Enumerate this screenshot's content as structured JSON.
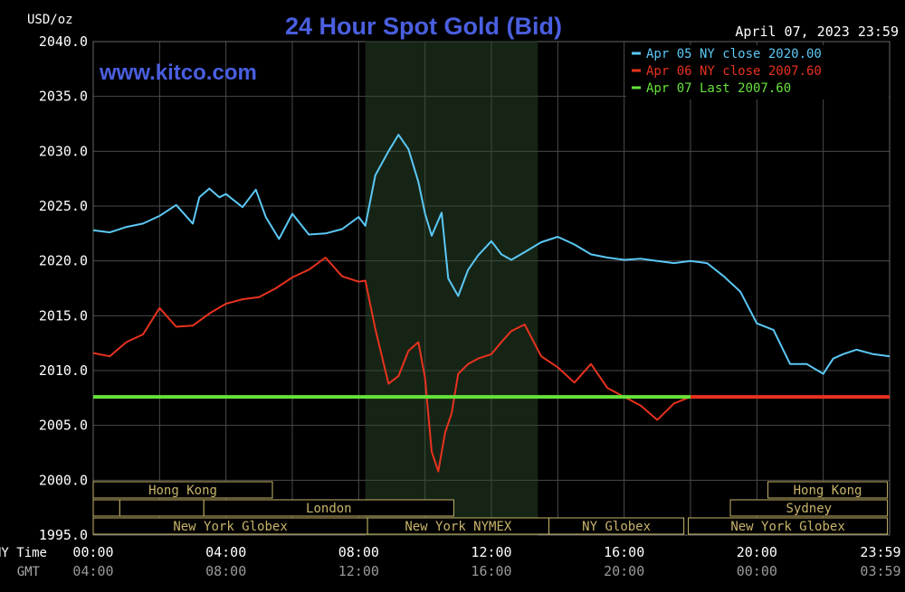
{
  "chart_data": {
    "type": "line",
    "title": "24 Hour Spot Gold (Bid)",
    "subtitle": "www.kitco.com",
    "unit_label": "USD/oz",
    "timestamp": "April 07, 2023 23:59",
    "ylim": [
      1995,
      2040
    ],
    "y_ticks": [
      "2040.0",
      "2035.0",
      "2030.0",
      "2025.0",
      "2020.0",
      "2015.0",
      "2010.0",
      "2005.0",
      "2000.0",
      "1995.0"
    ],
    "x_row_labels": [
      "NY Time",
      "GMT"
    ],
    "x_ticks_ny": [
      "00:00",
      "04:00",
      "08:00",
      "12:00",
      "16:00",
      "20:00",
      "23:59"
    ],
    "x_ticks_gmt": [
      "04:00",
      "08:00",
      "12:00",
      "16:00",
      "20:00",
      "00:00",
      "03:59"
    ],
    "x_range_hours": [
      0,
      24
    ],
    "shaded_region_hours": [
      8.2,
      13.4
    ],
    "legend_placement": "top-right",
    "legend": [
      {
        "text": "Apr 05 NY close 2020.00",
        "color": "#5bc8f5"
      },
      {
        "text": "Apr 06 NY close 2007.60",
        "color": "#e8321e"
      },
      {
        "text": "Apr 07 Last 2007.60",
        "color": "#66e23a"
      }
    ],
    "series": [
      {
        "name": "Apr 05 NY close 2020.00",
        "color": "#5bc8f5",
        "x": [
          0,
          0.5,
          1,
          1.5,
          2,
          2.5,
          3,
          3.2,
          3.5,
          3.8,
          4,
          4.5,
          4.9,
          5.2,
          5.6,
          6,
          6.5,
          7,
          7.5,
          8,
          8.2,
          8.5,
          8.9,
          9.2,
          9.5,
          9.8,
          10,
          10.2,
          10.5,
          10.7,
          11,
          11.3,
          11.6,
          12,
          12.3,
          12.6,
          13,
          13.5,
          14,
          14.5,
          15,
          15.5,
          16,
          16.5,
          17,
          17.5,
          18,
          18.5,
          19,
          19.5,
          20,
          20.5,
          21,
          21.5,
          22,
          22.3,
          22.6,
          23,
          23.5,
          24
        ],
        "values": [
          2022.8,
          2022.6,
          2023.1,
          2023.4,
          2024.1,
          2025.1,
          2023.4,
          2025.8,
          2026.6,
          2025.8,
          2026.1,
          2024.9,
          2026.5,
          2024.0,
          2022.0,
          2024.3,
          2022.4,
          2022.5,
          2022.9,
          2024.0,
          2023.2,
          2027.8,
          2030.0,
          2031.5,
          2030.2,
          2027.2,
          2024.3,
          2022.3,
          2024.4,
          2018.4,
          2016.8,
          2019.2,
          2020.5,
          2021.8,
          2020.6,
          2020.1,
          2020.8,
          2021.7,
          2022.2,
          2021.5,
          2020.6,
          2020.3,
          2020.1,
          2020.2,
          2020.0,
          2019.8,
          2020.0,
          2019.8,
          2018.6,
          2017.2,
          2014.3,
          2013.7,
          2010.6,
          2010.6,
          2009.7,
          2011.1,
          2011.5,
          2011.9,
          2011.5,
          2011.3
        ]
      },
      {
        "name": "Apr 06 NY close 2007.60",
        "color": "#e8321e",
        "x": [
          0,
          0.5,
          1,
          1.5,
          2,
          2.5,
          3,
          3.5,
          4,
          4.5,
          5,
          5.5,
          6,
          6.5,
          7,
          7.5,
          8,
          8.2,
          8.5,
          8.9,
          9.2,
          9.5,
          9.8,
          10,
          10.2,
          10.4,
          10.6,
          10.8,
          11,
          11.3,
          11.6,
          12,
          12.3,
          12.6,
          13,
          13.5,
          14,
          14.5,
          15,
          15.5,
          16,
          16.5,
          17,
          17.5,
          18,
          18.5,
          19,
          19.5,
          20,
          20.5,
          21,
          21.5,
          22,
          22.5,
          23,
          23.5,
          24
        ],
        "values": [
          2011.6,
          2011.3,
          2012.6,
          2013.3,
          2015.7,
          2014.0,
          2014.1,
          2015.2,
          2016.1,
          2016.5,
          2016.7,
          2017.5,
          2018.5,
          2019.2,
          2020.3,
          2018.6,
          2018.1,
          2018.2,
          2013.8,
          2008.8,
          2009.5,
          2011.8,
          2012.6,
          2009.3,
          2002.6,
          2000.8,
          2004.3,
          2006.1,
          2009.7,
          2010.6,
          2011.1,
          2011.5,
          2012.6,
          2013.6,
          2014.2,
          2011.3,
          2010.3,
          2008.9,
          2010.6,
          2008.4,
          2007.6,
          2006.8,
          2005.5,
          2007.0,
          2007.6,
          2007.6,
          2007.6,
          2007.6,
          2007.6,
          2007.6,
          2007.6,
          2007.6,
          2007.6,
          2007.6,
          2007.6,
          2007.6,
          2007.6
        ]
      },
      {
        "name": "Apr 07 Last 2007.60",
        "color": "#66e23a",
        "x": [
          0,
          18
        ],
        "values": [
          2007.6,
          2007.6
        ]
      }
    ],
    "sessions": [
      {
        "label": "Hong Kong",
        "start": 0,
        "end": 8.1,
        "row": 0
      },
      {
        "label": "",
        "start": 0,
        "end": 1.2,
        "row": 1
      },
      {
        "label": "",
        "start": 1.2,
        "end": 5.0,
        "row": 1
      },
      {
        "label": "London",
        "start": 5.0,
        "end": 16.3,
        "row": 1
      },
      {
        "label": "New York Globex",
        "start": 0,
        "end": 12.4,
        "row": 2
      },
      {
        "label": "New York NYMEX",
        "start": 12.4,
        "end": 20.6,
        "row": 2
      },
      {
        "label": "NY Globex",
        "start": 20.6,
        "end": 26.7,
        "row": 2
      },
      {
        "label": "Hong Kong",
        "start": 30.5,
        "end": 35.9,
        "row": 0
      },
      {
        "label": "Sydney",
        "start": 28.8,
        "end": 35.9,
        "row": 1
      },
      {
        "label": "New York Globex",
        "start": 26.9,
        "end": 35.9,
        "row": 2
      }
    ]
  }
}
